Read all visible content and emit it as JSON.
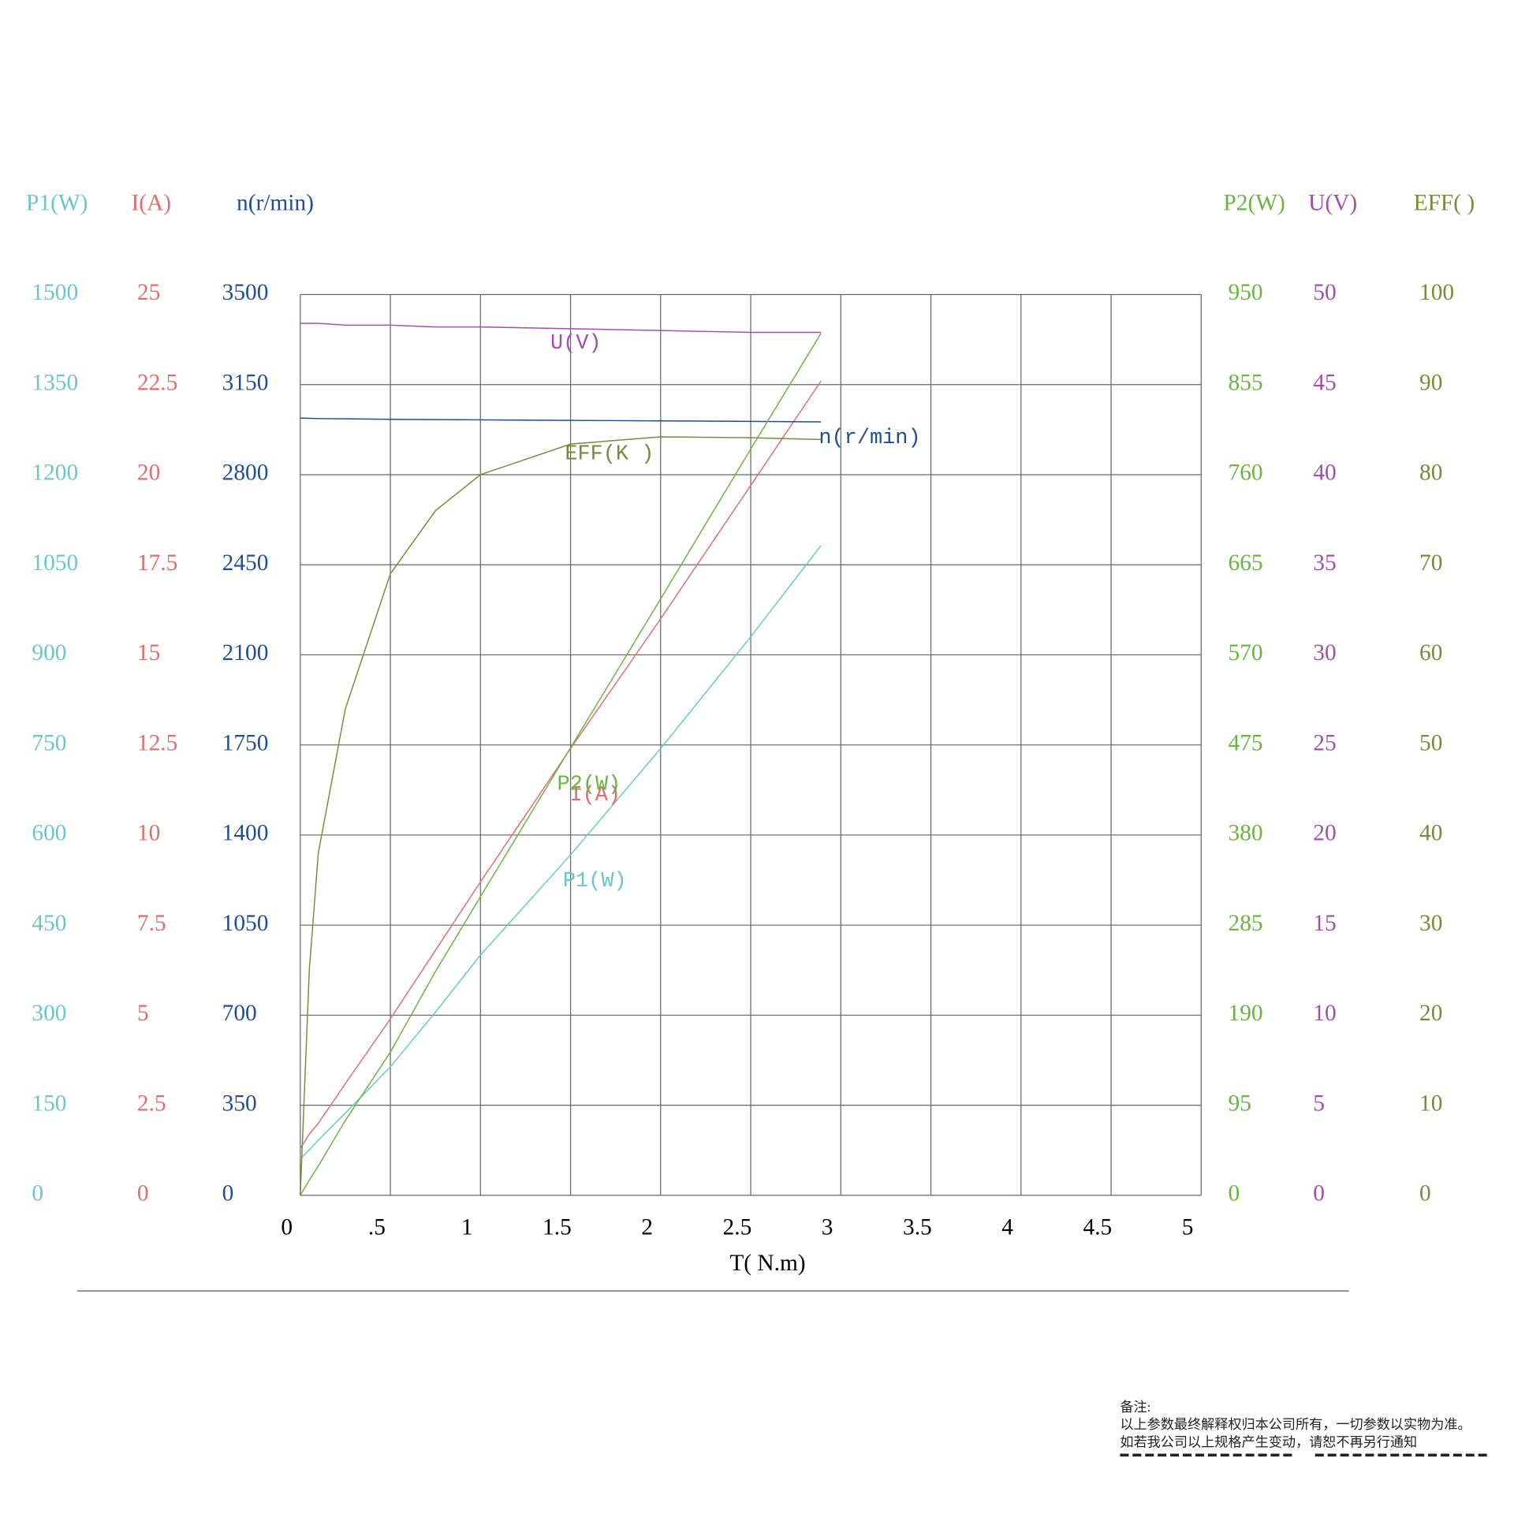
{
  "chart_data": {
    "type": "line",
    "x_label": "T( N.m)",
    "x": [
      0,
      0.05,
      0.1,
      0.25,
      0.5,
      0.75,
      1,
      1.5,
      2,
      2.5,
      2.89
    ],
    "xlim": [
      0,
      5
    ],
    "xticks": [
      0,
      {
        "value": 0.5,
        "label": ".5"
      },
      1,
      1.5,
      2,
      2.5,
      3,
      3.5,
      4,
      4.5,
      5
    ],
    "grid": true,
    "series": [
      {
        "name": "P1(W)",
        "axis_label": "P1(W)",
        "color": "#6cc6c9",
        "ylim": [
          0,
          1500
        ],
        "yticks": [
          0,
          150,
          300,
          450,
          600,
          750,
          900,
          1050,
          1200,
          1350,
          1500
        ],
        "values": [
          61,
          76,
          92,
          137,
          214,
          305,
          400,
          567,
          744,
          930,
          1082
        ]
      },
      {
        "name": "I(A)",
        "axis_label": "I(A)",
        "color": "#e06d6d",
        "ylim": [
          0,
          25
        ],
        "yticks": [
          0,
          2.5,
          5,
          7.5,
          10,
          12.5,
          15,
          17.5,
          20,
          22.5,
          25
        ],
        "values": [
          1.3,
          1.7,
          2.0,
          3.1,
          4.9,
          6.8,
          8.7,
          12.4,
          16.0,
          19.7,
          22.6
        ]
      },
      {
        "name": "n(r/min)",
        "axis_label": "n(r/min)",
        "color": "#1f4e96",
        "ylim": [
          0,
          3500
        ],
        "yticks": [
          0,
          350,
          700,
          1050,
          1400,
          1750,
          2100,
          2450,
          2800,
          3150,
          3500
        ],
        "values": [
          3020,
          3019,
          3018,
          3017,
          3015,
          3014,
          3013,
          3011,
          3009,
          3007,
          3005
        ]
      },
      {
        "name": "P2(W)",
        "axis_label": "P2(W)",
        "color": "#6ab441",
        "ylim": [
          0,
          950
        ],
        "yticks": [
          0,
          95,
          190,
          285,
          380,
          475,
          570,
          665,
          760,
          855,
          950
        ],
        "values": [
          0,
          16,
          31,
          79,
          151,
          236,
          315,
          472,
          629,
          787,
          909
        ]
      },
      {
        "name": "U(V)",
        "axis_label": "U(V)",
        "color": "#a050a8",
        "ylim": [
          0,
          50
        ],
        "yticks": [
          0,
          5,
          10,
          15,
          20,
          25,
          30,
          35,
          40,
          45,
          50
        ],
        "values": [
          48.4,
          48.4,
          48.4,
          48.3,
          48.3,
          48.2,
          48.2,
          48.1,
          48.0,
          47.9,
          47.9
        ]
      },
      {
        "name": "EFF(K )",
        "axis_label": "EFF(    )",
        "color": "#7a8a3a",
        "ylim": [
          0,
          100
        ],
        "yticks": [
          0,
          10,
          20,
          30,
          40,
          50,
          60,
          70,
          80,
          90,
          100
        ],
        "values": [
          0,
          25,
          38,
          54,
          69,
          76,
          80,
          83.4,
          84.2,
          84.1,
          83.9
        ]
      }
    ]
  },
  "notes": {
    "title": "备注:",
    "lines": [
      "以上参数最终解释权归本公司所有，一切参数以实物为准。",
      "如若我公司以上规格产生变动，请恕不再另行通知"
    ]
  }
}
